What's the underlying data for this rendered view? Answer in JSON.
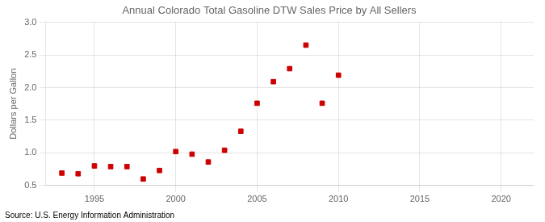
{
  "chart_data": {
    "type": "scatter",
    "title": "Annual Colorado Total Gasoline DTW Sales Price by All Sellers",
    "ylabel": "Dollars per Gallon",
    "annotation": "Source: U.S. Energy Information Administration",
    "x": [
      1993,
      1994,
      1995,
      1996,
      1997,
      1998,
      1999,
      2000,
      2001,
      2002,
      2003,
      2004,
      2005,
      2006,
      2007,
      2008,
      2009,
      2010
    ],
    "values": [
      0.69,
      0.68,
      0.8,
      0.79,
      0.79,
      0.6,
      0.73,
      1.02,
      0.98,
      0.86,
      1.04,
      1.33,
      1.76,
      2.09,
      2.29,
      2.65,
      1.76,
      2.19
    ],
    "color": "#cc0000",
    "marker": "square",
    "xlim": [
      1992,
      2022
    ],
    "ylim": [
      0.5,
      3.0
    ],
    "xticks": [
      1995,
      2000,
      2005,
      2010,
      2015,
      2020
    ],
    "yticks": [
      0.5,
      {
        "value": 1.0,
        "label": "1.0"
      },
      1.5,
      {
        "value": 2.0,
        "label": "2.0"
      },
      2.5,
      {
        "value": 3.0,
        "label": "3.0"
      }
    ],
    "grid": true
  }
}
